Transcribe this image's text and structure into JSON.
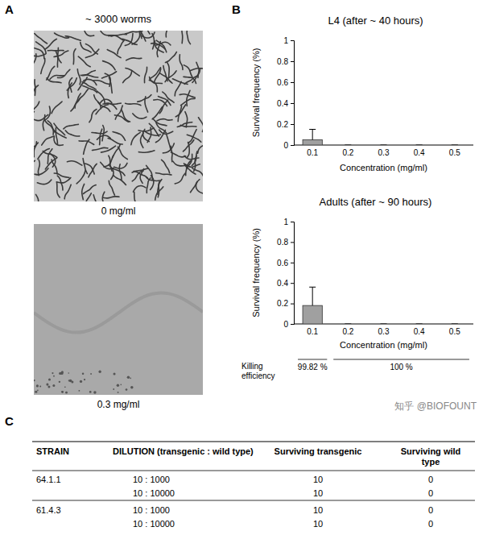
{
  "letters": [
    "A",
    "B",
    "C"
  ],
  "panel_a": {
    "caption": "~ 3000 worms",
    "images": [
      {
        "label": "0 mg/ml"
      },
      {
        "label": "0.3 mg/ml"
      }
    ]
  },
  "chart_data": [
    {
      "type": "bar",
      "title": "L4 (after ~ 40 hours)",
      "x_label": "Concentration (mg/ml)",
      "y_label": "Survival frequency (%)",
      "categories": [
        0.1,
        0.2,
        0.3,
        0.4,
        0.5
      ],
      "values": [
        0.05,
        0,
        0,
        0,
        0
      ],
      "errors": [
        0.1,
        0,
        0,
        0,
        0
      ],
      "color": "#a0a0a0",
      "ylim": [
        0,
        1
      ],
      "yticks": [
        0,
        0.2,
        0.4,
        0.6,
        0.8,
        1
      ]
    },
    {
      "type": "bar",
      "title": "Adults (after ~ 90 hours)",
      "x_label": "Concentration (mg/ml)",
      "y_label": "Survival frequency (%)",
      "categories": [
        0.1,
        0.2,
        0.3,
        0.4,
        0.5
      ],
      "values": [
        0.18,
        0,
        0,
        0,
        0
      ],
      "errors": [
        0.18,
        0,
        0,
        0,
        0
      ],
      "color": "#a0a0a0",
      "ylim": [
        0,
        1
      ],
      "yticks": [
        0,
        0.2,
        0.4,
        0.6,
        0.8,
        1
      ],
      "annotations": {
        "row_label": "Killing efficiency",
        "items": [
          {
            "text": "99.82 %",
            "span": [
              0.1,
              0.1
            ]
          },
          {
            "text": "100 %",
            "span": [
              0.2,
              0.5
            ]
          }
        ]
      }
    }
  ],
  "table": {
    "columns": [
      "STRAIN",
      "DILUTION (transgenic : wild type)",
      "Surviving transgenic",
      "Surviving wild type"
    ],
    "rows": [
      [
        "64.1.1",
        "10 : 1000",
        10,
        0
      ],
      [
        null,
        "10 : 10000",
        10,
        0
      ],
      [
        "61.4.3",
        "10 : 1000",
        10,
        0
      ],
      [
        null,
        "10 : 10000",
        10,
        0
      ]
    ]
  },
  "watermark": "知乎 @BIOFOUNT"
}
